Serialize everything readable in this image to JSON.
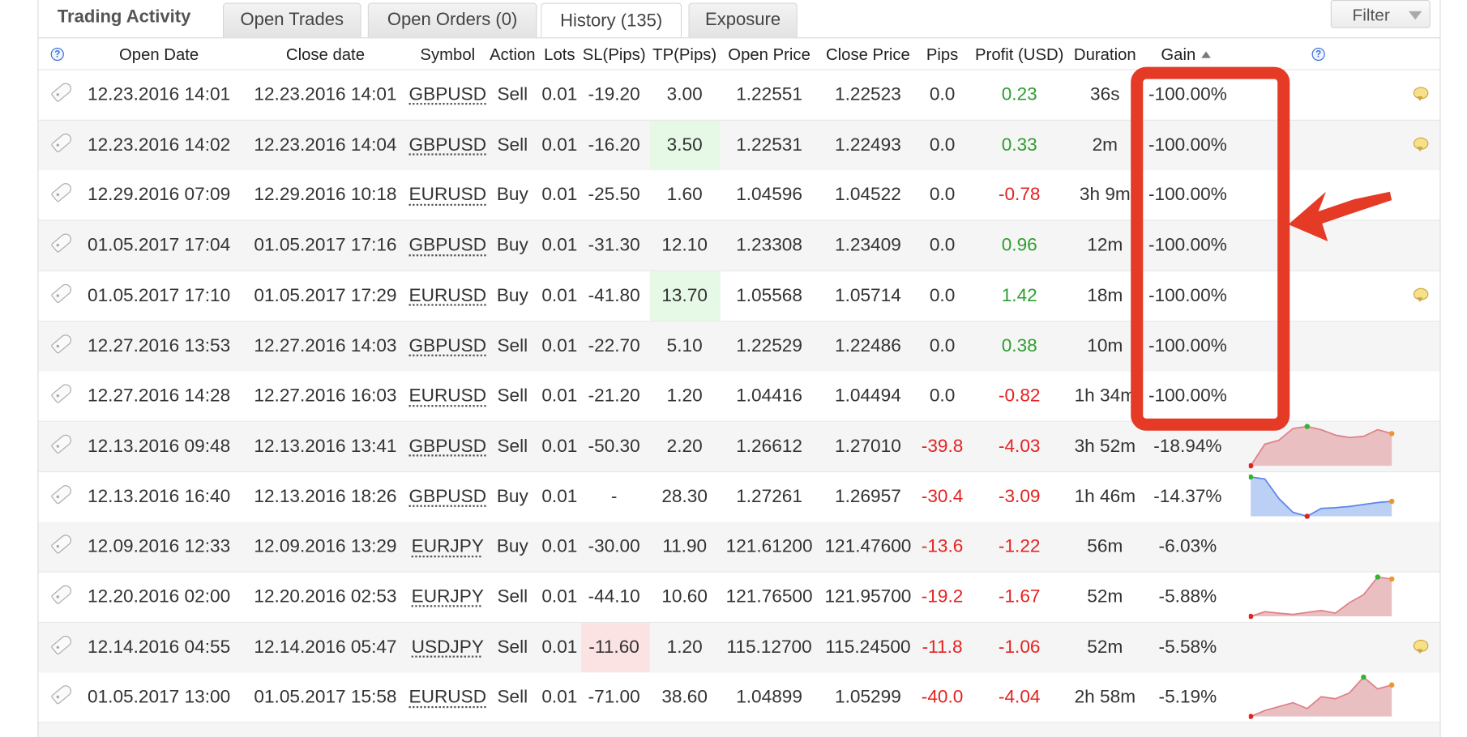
{
  "panel": {
    "title": "Trading Activity"
  },
  "tabs": [
    {
      "label": "Open Trades",
      "active": false
    },
    {
      "label": "Open Orders (0)",
      "active": false
    },
    {
      "label": "History (135)",
      "active": true
    },
    {
      "label": "Exposure",
      "active": false
    }
  ],
  "filter": {
    "label": "Filter"
  },
  "columns": {
    "open_date": "Open Date",
    "close_date": "Close date",
    "symbol": "Symbol",
    "action": "Action",
    "lots": "Lots",
    "sl": "SL(Pips)",
    "tp": "TP(Pips)",
    "open_price": "Open Price",
    "close_price": "Close Price",
    "pips": "Pips",
    "profit": "Profit (USD)",
    "duration": "Duration",
    "gain": "Gain",
    "gain_sort": "ascending"
  },
  "help_icon_glyph": "?",
  "colors": {
    "positive": "#2e9e2e",
    "negative": "#e52222",
    "annotation": "#e53a26",
    "tp_highlight": "#e6f9e6",
    "sl_highlight": "#fbe3e3",
    "spark_loss": "#e9bfc2",
    "spark_gain": "#bcd0f5"
  },
  "rows": [
    {
      "open": "12.23.2016 14:01",
      "close": "12.23.2016 14:01",
      "symbol": "GBPUSD",
      "action": "Sell",
      "lots": "0.01",
      "sl": "-19.20",
      "tp": "3.00",
      "open_price": "1.22551",
      "close_price": "1.22523",
      "pips": "0.0",
      "pips_color": "neutral",
      "profit": "0.23",
      "profit_color": "green",
      "duration": "36s",
      "gain": "-100.00%",
      "comment": true,
      "spark": null,
      "tp_hl": false,
      "sl_hl": false
    },
    {
      "open": "12.23.2016 14:02",
      "close": "12.23.2016 14:04",
      "symbol": "GBPUSD",
      "action": "Sell",
      "lots": "0.01",
      "sl": "-16.20",
      "tp": "3.50",
      "open_price": "1.22531",
      "close_price": "1.22493",
      "pips": "0.0",
      "pips_color": "neutral",
      "profit": "0.33",
      "profit_color": "green",
      "duration": "2m",
      "gain": "-100.00%",
      "comment": true,
      "spark": null,
      "tp_hl": true,
      "sl_hl": false
    },
    {
      "open": "12.29.2016 07:09",
      "close": "12.29.2016 10:18",
      "symbol": "EURUSD",
      "action": "Buy",
      "lots": "0.01",
      "sl": "-25.50",
      "tp": "1.60",
      "open_price": "1.04596",
      "close_price": "1.04522",
      "pips": "0.0",
      "pips_color": "neutral",
      "profit": "-0.78",
      "profit_color": "red",
      "duration": "3h 9m",
      "gain": "-100.00%",
      "comment": false,
      "spark": null,
      "tp_hl": false,
      "sl_hl": false
    },
    {
      "open": "01.05.2017 17:04",
      "close": "01.05.2017 17:16",
      "symbol": "GBPUSD",
      "action": "Buy",
      "lots": "0.01",
      "sl": "-31.30",
      "tp": "12.10",
      "open_price": "1.23308",
      "close_price": "1.23409",
      "pips": "0.0",
      "pips_color": "neutral",
      "profit": "0.96",
      "profit_color": "green",
      "duration": "12m",
      "gain": "-100.00%",
      "comment": false,
      "spark": null,
      "tp_hl": false,
      "sl_hl": false
    },
    {
      "open": "01.05.2017 17:10",
      "close": "01.05.2017 17:29",
      "symbol": "EURUSD",
      "action": "Buy",
      "lots": "0.01",
      "sl": "-41.80",
      "tp": "13.70",
      "open_price": "1.05568",
      "close_price": "1.05714",
      "pips": "0.0",
      "pips_color": "neutral",
      "profit": "1.42",
      "profit_color": "green",
      "duration": "18m",
      "gain": "-100.00%",
      "comment": true,
      "spark": null,
      "tp_hl": true,
      "sl_hl": false
    },
    {
      "open": "12.27.2016 13:53",
      "close": "12.27.2016 14:03",
      "symbol": "GBPUSD",
      "action": "Sell",
      "lots": "0.01",
      "sl": "-22.70",
      "tp": "5.10",
      "open_price": "1.22529",
      "close_price": "1.22486",
      "pips": "0.0",
      "pips_color": "neutral",
      "profit": "0.38",
      "profit_color": "green",
      "duration": "10m",
      "gain": "-100.00%",
      "comment": false,
      "spark": null,
      "tp_hl": false,
      "sl_hl": false
    },
    {
      "open": "12.27.2016 14:28",
      "close": "12.27.2016 16:03",
      "symbol": "EURUSD",
      "action": "Sell",
      "lots": "0.01",
      "sl": "-21.20",
      "tp": "1.20",
      "open_price": "1.04416",
      "close_price": "1.04494",
      "pips": "0.0",
      "pips_color": "neutral",
      "profit": "-0.82",
      "profit_color": "red",
      "duration": "1h 34m",
      "gain": "-100.00%",
      "comment": false,
      "spark": null,
      "tp_hl": false,
      "sl_hl": false
    },
    {
      "open": "12.13.2016 09:48",
      "close": "12.13.2016 13:41",
      "symbol": "GBPUSD",
      "action": "Sell",
      "lots": "0.01",
      "sl": "-50.30",
      "tp": "2.20",
      "open_price": "1.26612",
      "close_price": "1.27010",
      "pips": "-39.8",
      "pips_color": "red",
      "profit": "-4.03",
      "profit_color": "red",
      "duration": "3h 52m",
      "gain": "-18.94%",
      "comment": false,
      "spark": {
        "fill": "loss",
        "pts": [
          0.0,
          0.55,
          0.65,
          0.95,
          1.0,
          0.92,
          0.78,
          0.72,
          0.75,
          0.92,
          0.82
        ]
      },
      "tp_hl": false,
      "sl_hl": false
    },
    {
      "open": "12.13.2016 16:40",
      "close": "12.13.2016 18:26",
      "symbol": "GBPUSD",
      "action": "Buy",
      "lots": "0.01",
      "sl": "-",
      "tp": "28.30",
      "open_price": "1.27261",
      "close_price": "1.26957",
      "pips": "-30.4",
      "pips_color": "red",
      "profit": "-3.09",
      "profit_color": "red",
      "duration": "1h 46m",
      "gain": "-14.37%",
      "comment": false,
      "spark": {
        "fill": "gain",
        "pts": [
          1.0,
          0.95,
          0.45,
          0.1,
          0.0,
          0.2,
          0.22,
          0.25,
          0.3,
          0.35,
          0.38
        ]
      },
      "tp_hl": false,
      "sl_hl": false
    },
    {
      "open": "12.09.2016 12:33",
      "close": "12.09.2016 13:29",
      "symbol": "EURJPY",
      "action": "Buy",
      "lots": "0.01",
      "sl": "-30.00",
      "tp": "11.90",
      "open_price": "121.61200",
      "close_price": "121.47600",
      "pips": "-13.6",
      "pips_color": "red",
      "profit": "-1.22",
      "profit_color": "red",
      "duration": "56m",
      "gain": "-6.03%",
      "comment": false,
      "spark": null,
      "tp_hl": false,
      "sl_hl": false
    },
    {
      "open": "12.20.2016 02:00",
      "close": "12.20.2016 02:53",
      "symbol": "EURJPY",
      "action": "Sell",
      "lots": "0.01",
      "sl": "-44.10",
      "tp": "10.60",
      "open_price": "121.76500",
      "close_price": "121.95700",
      "pips": "-19.2",
      "pips_color": "red",
      "profit": "-1.67",
      "profit_color": "red",
      "duration": "52m",
      "gain": "-5.88%",
      "comment": false,
      "spark": {
        "fill": "loss",
        "pts": [
          0.0,
          0.12,
          0.08,
          0.05,
          0.1,
          0.15,
          0.08,
          0.35,
          0.55,
          1.0,
          0.95
        ]
      },
      "tp_hl": false,
      "sl_hl": false
    },
    {
      "open": "12.14.2016 04:55",
      "close": "12.14.2016 05:47",
      "symbol": "USDJPY",
      "action": "Sell",
      "lots": "0.01",
      "sl": "-11.60",
      "tp": "1.20",
      "open_price": "115.12700",
      "close_price": "115.24500",
      "pips": "-11.8",
      "pips_color": "red",
      "profit": "-1.06",
      "profit_color": "red",
      "duration": "52m",
      "gain": "-5.58%",
      "comment": true,
      "spark": null,
      "tp_hl": false,
      "sl_hl": true
    },
    {
      "open": "01.05.2017 13:00",
      "close": "01.05.2017 15:58",
      "symbol": "EURUSD",
      "action": "Sell",
      "lots": "0.01",
      "sl": "-71.00",
      "tp": "38.60",
      "open_price": "1.04899",
      "close_price": "1.05299",
      "pips": "-40.0",
      "pips_color": "red",
      "profit": "-4.04",
      "profit_color": "red",
      "duration": "2h 58m",
      "gain": "-5.19%",
      "comment": false,
      "spark": {
        "fill": "loss",
        "pts": [
          0.0,
          0.15,
          0.25,
          0.35,
          0.2,
          0.5,
          0.45,
          0.6,
          1.0,
          0.7,
          0.8
        ]
      },
      "tp_hl": false,
      "sl_hl": false
    }
  ]
}
